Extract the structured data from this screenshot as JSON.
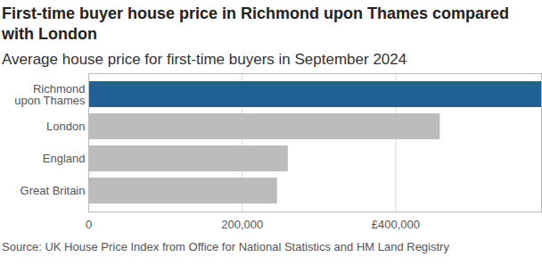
{
  "chart_data": {
    "type": "bar",
    "orientation": "horizontal",
    "title": "First-time buyer house price in Richmond upon Thames compared with London",
    "subtitle": "Average house price for first-time buyers in September 2024",
    "caption": "Source: UK House Price Index from Office for National Statistics and HM Land Registry",
    "categories": [
      "Richmond upon Thames",
      "London",
      "England",
      "Great Britain"
    ],
    "values": [
      590000,
      458000,
      260000,
      246000
    ],
    "colors": [
      "#206095",
      "#bcbcbc",
      "#bcbcbc",
      "#bcbcbc"
    ],
    "xlim": [
      0,
      590000
    ],
    "xticks": [
      0,
      {
        "value": 200000,
        "label": "200,000"
      },
      {
        "value": 400000,
        "label": "£400,000"
      }
    ],
    "grid": true
  }
}
